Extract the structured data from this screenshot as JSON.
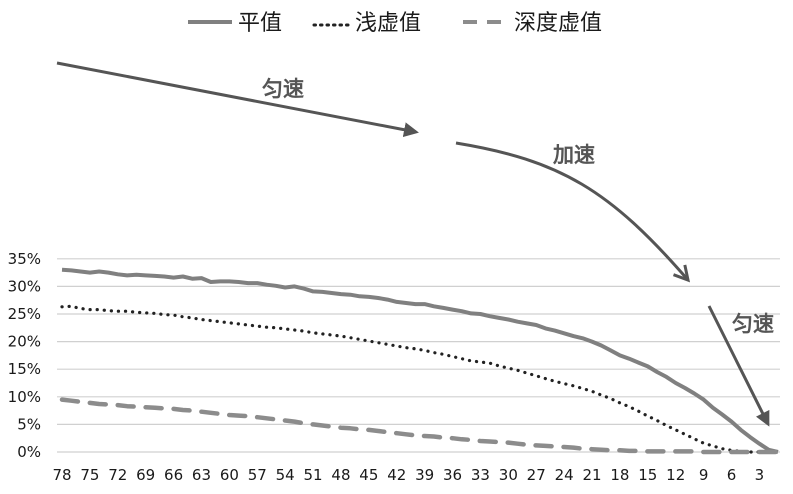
{
  "chart_data": {
    "type": "line",
    "title": "",
    "xlabel": "",
    "ylabel": "",
    "ylim": [
      0,
      35
    ],
    "grid": true,
    "legend_position": "top",
    "x": [
      78,
      77,
      76,
      75,
      74,
      73,
      72,
      71,
      70,
      69,
      68,
      67,
      66,
      65,
      64,
      63,
      62,
      61,
      60,
      59,
      58,
      57,
      56,
      55,
      54,
      53,
      52,
      51,
      50,
      49,
      48,
      47,
      46,
      45,
      44,
      43,
      42,
      41,
      40,
      39,
      38,
      37,
      36,
      35,
      34,
      33,
      32,
      31,
      30,
      29,
      28,
      27,
      26,
      25,
      24,
      23,
      22,
      21,
      20,
      19,
      18,
      17,
      16,
      15,
      14,
      13,
      12,
      11,
      10,
      9,
      8,
      7,
      6,
      5,
      4,
      3,
      2,
      1
    ],
    "x_tick_labels": [
      "78",
      "75",
      "72",
      "69",
      "66",
      "63",
      "60",
      "57",
      "54",
      "51",
      "48",
      "45",
      "42",
      "39",
      "36",
      "33",
      "30",
      "27",
      "24",
      "21",
      "18",
      "15",
      "12",
      "9",
      "6",
      "3"
    ],
    "y_tick_labels": [
      "0%",
      "5%",
      "10%",
      "15%",
      "20%",
      "25%",
      "30%",
      "35%"
    ],
    "series": [
      {
        "name": "平值",
        "style": "solid",
        "color": "#808080",
        "values": [
          33.0,
          32.9,
          32.7,
          32.5,
          32.7,
          32.5,
          32.2,
          32.0,
          32.1,
          32.0,
          31.9,
          31.8,
          31.6,
          31.8,
          31.4,
          31.5,
          30.8,
          30.9,
          30.9,
          30.8,
          30.6,
          30.6,
          30.3,
          30.1,
          29.8,
          30.0,
          29.6,
          29.1,
          29.0,
          28.8,
          28.6,
          28.5,
          28.2,
          28.1,
          27.9,
          27.6,
          27.2,
          27.0,
          26.8,
          26.8,
          26.4,
          26.1,
          25.8,
          25.5,
          25.1,
          25.0,
          24.6,
          24.3,
          24.0,
          23.6,
          23.3,
          23.0,
          22.4,
          22.0,
          21.5,
          21.0,
          20.6,
          20.0,
          19.3,
          18.4,
          17.5,
          16.9,
          16.2,
          15.5,
          14.5,
          13.6,
          12.5,
          11.6,
          10.6,
          9.5,
          8.0,
          6.8,
          5.5,
          4.0,
          2.7,
          1.5,
          0.4,
          0.0
        ]
      },
      {
        "name": "浅虚值",
        "style": "dotted",
        "color": "#222222",
        "values": [
          26.3,
          26.4,
          26.0,
          25.8,
          25.8,
          25.6,
          25.5,
          25.5,
          25.3,
          25.2,
          25.1,
          24.9,
          24.8,
          24.5,
          24.3,
          24.0,
          23.8,
          23.6,
          23.4,
          23.2,
          23.0,
          22.8,
          22.6,
          22.5,
          22.3,
          22.1,
          21.9,
          21.6,
          21.4,
          21.2,
          21.0,
          20.7,
          20.4,
          20.1,
          19.8,
          19.5,
          19.2,
          18.9,
          18.7,
          18.4,
          18.0,
          17.7,
          17.3,
          16.9,
          16.5,
          16.3,
          16.1,
          15.6,
          15.2,
          14.8,
          14.3,
          13.8,
          13.3,
          12.8,
          12.4,
          12.0,
          11.5,
          11.0,
          10.3,
          9.7,
          8.9,
          8.2,
          7.4,
          6.5,
          5.7,
          4.8,
          4.0,
          3.2,
          2.4,
          1.6,
          1.1,
          0.6,
          0.3,
          0.1,
          0.0,
          0.0,
          0.0,
          0.0
        ]
      },
      {
        "name": "深度虚值",
        "style": "dashed",
        "color": "#8c8c8c",
        "values": [
          9.5,
          9.3,
          9.1,
          8.9,
          8.7,
          8.6,
          8.5,
          8.3,
          8.2,
          8.1,
          8.0,
          7.9,
          7.8,
          7.6,
          7.5,
          7.3,
          7.1,
          6.9,
          6.7,
          6.6,
          6.5,
          6.3,
          6.1,
          5.9,
          5.7,
          5.5,
          5.2,
          5.0,
          4.8,
          4.6,
          4.4,
          4.3,
          4.1,
          4.0,
          3.8,
          3.6,
          3.4,
          3.2,
          3.0,
          2.9,
          2.8,
          2.6,
          2.5,
          2.3,
          2.2,
          2.0,
          1.9,
          1.8,
          1.7,
          1.5,
          1.3,
          1.2,
          1.1,
          1.0,
          0.9,
          0.8,
          0.6,
          0.5,
          0.4,
          0.3,
          0.3,
          0.2,
          0.2,
          0.1,
          0.1,
          0.1,
          0.1,
          0.1,
          0.1,
          0.0,
          0.0,
          0.0,
          0.0,
          0.0,
          0.0,
          0.0,
          0.0,
          0.0
        ]
      }
    ],
    "annotations": [
      {
        "text": "匀速",
        "x": 285,
        "y": 95,
        "arrow": "straight",
        "from": [
          57,
          63
        ],
        "to": [
          418,
          133
        ]
      },
      {
        "text": "加速",
        "x": 578,
        "y": 160,
        "arrow": "curved",
        "from": [
          456,
          143
        ],
        "to": [
          690,
          282
        ]
      },
      {
        "text": "匀速",
        "x": 757,
        "y": 330,
        "arrow": "straight",
        "from": [
          709,
          306
        ],
        "to": [
          770,
          427
        ]
      }
    ]
  },
  "legend": [
    {
      "label": "平值",
      "style": "solid"
    },
    {
      "label": "浅虚值",
      "style": "dotted"
    },
    {
      "label": "深度虚值",
      "style": "dashed"
    }
  ]
}
